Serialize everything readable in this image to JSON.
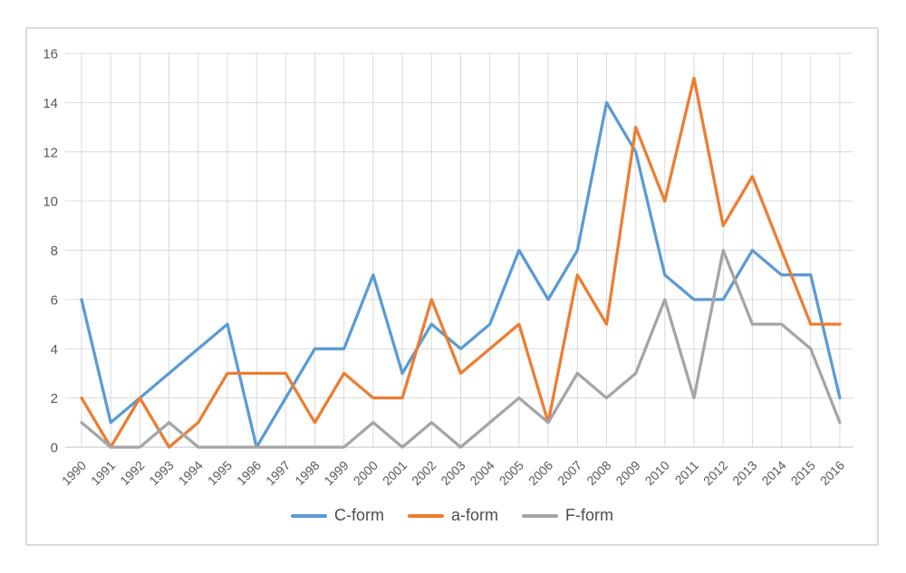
{
  "window": {
    "background_color": "#FFFFFF",
    "frame_border_color": "#DADADA"
  },
  "chart_data": {
    "type": "line",
    "title": "",
    "categories": [
      "1990",
      "1991",
      "1992",
      "1993",
      "1994",
      "1995",
      "1996",
      "1997",
      "1998",
      "1999",
      "2000",
      "2001",
      "2002",
      "2003",
      "2004",
      "2005",
      "2006",
      "2007",
      "2008",
      "2009",
      "2010",
      "2011",
      "2012",
      "2013",
      "2014",
      "2015",
      "2016"
    ],
    "series": [
      {
        "name": "C-form",
        "color": "#5B9BD5",
        "values": [
          6,
          1,
          2,
          3,
          4,
          5,
          0,
          2,
          4,
          4,
          7,
          3,
          5,
          4,
          5,
          8,
          6,
          8,
          14,
          12,
          7,
          6,
          6,
          8,
          7,
          7,
          2
        ]
      },
      {
        "name": "a-form",
        "color": "#ED7D31",
        "values": [
          2,
          0,
          2,
          0,
          1,
          3,
          3,
          3,
          1,
          3,
          2,
          2,
          6,
          3,
          4,
          5,
          1,
          7,
          5,
          13,
          10,
          15,
          9,
          11,
          8,
          5,
          5
        ]
      },
      {
        "name": "F-form",
        "color": "#A5A5A5",
        "values": [
          1,
          0,
          0,
          1,
          0,
          0,
          0,
          0,
          0,
          0,
          1,
          0,
          1,
          0,
          1,
          2,
          1,
          3,
          2,
          3,
          6,
          2,
          8,
          5,
          5,
          4,
          1
        ]
      }
    ],
    "xlabel": "",
    "ylabel": "",
    "ylim": [
      0,
      16
    ],
    "yticks": [
      0,
      2,
      4,
      6,
      8,
      10,
      12,
      14,
      16
    ],
    "grid": true,
    "legend_position": "bottom",
    "gridline_color": "#D9D9D9",
    "axis_line_color": "#C0C0C0",
    "axis_label_color": "#595959"
  }
}
